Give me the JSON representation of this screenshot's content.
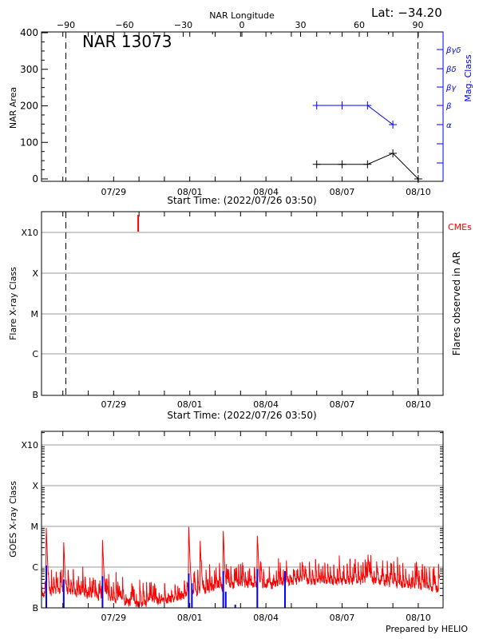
{
  "lat_label": "Lat: −34.20",
  "footer": "Prepared by HELIO",
  "colors": {
    "area": "#000000",
    "mag_class": "#0000ff",
    "goes": "#ff0000",
    "flares": "#0000ff",
    "cme": "#ff0000",
    "grid": "#999999"
  },
  "chart_data": [
    {
      "type": "line",
      "title": "NAR 13073",
      "xlabel": "Start Time: (2022/07/26 03:50)",
      "ylabel": "NAR Area",
      "y2label": "Mag. Class",
      "top_xlabel": "NAR Longitude",
      "start": "2022-07-26T03:50:00",
      "end": "2022-08-10T20:00:00",
      "ylim": [
        0,
        400
      ],
      "yticks": [
        "0",
        "100",
        "200",
        "300",
        "400"
      ],
      "xtick_labels": [
        "07/29",
        "08/01",
        "08/04",
        "08/07",
        "08/10"
      ],
      "xtick_dates": [
        "2022-07-29T00:00:00",
        "2022-08-01T00:00:00",
        "2022-08-04T00:00:00",
        "2022-08-07T00:00:00",
        "2022-08-10T00:00:00"
      ],
      "top_ticks": [
        "−90",
        "−60",
        "−30",
        "0",
        "30",
        "60",
        "90"
      ],
      "limb_longitudes": [
        -90,
        90
      ],
      "mag_class_ticks": [
        "α",
        "β",
        "βγ",
        "βδ",
        "βγδ"
      ],
      "series": [
        {
          "name": "NAR Area",
          "x": [
            "2022-08-06T00:00:00",
            "2022-08-07T00:00:00",
            "2022-08-08T00:00:00",
            "2022-08-09T00:00:00",
            "2022-08-10T00:00:00"
          ],
          "values": [
            40,
            40,
            40,
            70,
            0
          ]
        },
        {
          "name": "Mag. Class",
          "x": [
            "2022-08-06T00:00:00",
            "2022-08-07T00:00:00",
            "2022-08-08T00:00:00",
            "2022-08-09T00:00:00"
          ],
          "values": [
            "β",
            "β",
            "β",
            "α"
          ]
        }
      ]
    },
    {
      "type": "scatter",
      "xlabel": "Start Time: (2022/07/26 03:50)",
      "ylabel": "Flare X-ray Class",
      "y2label": "Flares observed in AR",
      "legend": "CMEs",
      "yticks": [
        "B",
        "C",
        "M",
        "X",
        "X10"
      ],
      "cmes": [
        "2022-07-30T00:00:00"
      ],
      "flares": []
    },
    {
      "type": "line",
      "ylabel": "GOES X-ray Class",
      "yscale": "log",
      "ylim": [
        1e-07,
        0.0021
      ],
      "yticks": [
        "B",
        "C",
        "M",
        "X",
        "X10"
      ],
      "baseline": [
        [
          "2022-07-26T03:50:00",
          2.2e-07
        ],
        [
          "2022-07-27T00:00:00",
          2.5e-07
        ],
        [
          "2022-07-28T00:00:00",
          2e-07
        ],
        [
          "2022-07-29T00:00:00",
          1.6e-07
        ],
        [
          "2022-07-30T00:00:00",
          1.2e-07
        ],
        [
          "2022-07-31T00:00:00",
          1.5e-07
        ],
        [
          "2022-08-01T00:00:00",
          2e-07
        ],
        [
          "2022-08-02T00:00:00",
          3e-07
        ],
        [
          "2022-08-03T00:00:00",
          3.8e-07
        ],
        [
          "2022-08-04T00:00:00",
          3.2e-07
        ],
        [
          "2022-08-05T00:00:00",
          4.5e-07
        ],
        [
          "2022-08-06T00:00:00",
          4.4e-07
        ],
        [
          "2022-08-07T00:00:00",
          4.4e-07
        ],
        [
          "2022-08-08T00:00:00",
          4.6e-07
        ],
        [
          "2022-08-09T00:00:00",
          3.8e-07
        ],
        [
          "2022-08-10T00:00:00",
          3.2e-07
        ],
        [
          "2022-08-10T20:00:00",
          2.8e-07
        ]
      ],
      "peaks": [
        [
          "2022-07-26T08:20:00",
          8.5e-06
        ],
        [
          "2022-07-27T00:50:00",
          3.7e-06
        ],
        [
          "2022-07-28T13:30:00",
          4.4e-06
        ],
        [
          "2022-07-31T23:00:00",
          9.5e-06
        ],
        [
          "2022-08-01T09:50:00",
          4.2e-06
        ],
        [
          "2022-08-02T07:40:00",
          7e-06
        ],
        [
          "2022-08-03T15:50:00",
          5.6e-06
        ],
        [
          "2022-08-08T00:30:00",
          1.6e-06
        ]
      ],
      "flare_markers": [
        [
          "2022-07-26T08:20:00",
          1.1e-06
        ],
        [
          "2022-07-27T00:50:00",
          5e-07
        ],
        [
          "2022-07-28T13:30:00",
          6e-07
        ],
        [
          "2022-07-31T23:00:00",
          7e-07
        ],
        [
          "2022-08-01T02:00:00",
          4e-07
        ],
        [
          "2022-08-02T07:40:00",
          8e-07
        ],
        [
          "2022-08-02T10:00:00",
          2.5e-07
        ],
        [
          "2022-08-02T19:00:00",
          1.2e-07
        ],
        [
          "2022-08-03T15:50:00",
          9e-07
        ],
        [
          "2022-08-04T18:00:00",
          8e-07
        ]
      ]
    }
  ]
}
